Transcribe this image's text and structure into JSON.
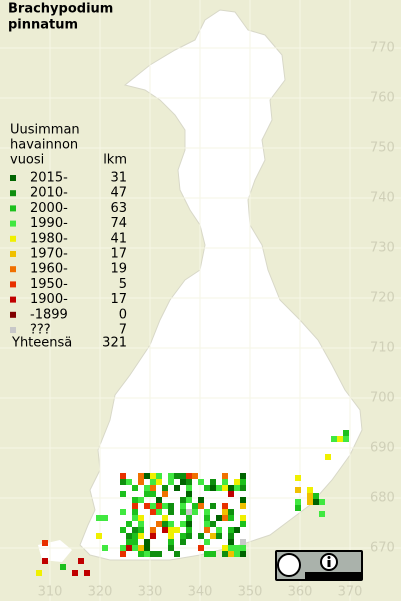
{
  "title": [
    "Brachypodium",
    "pinnatum"
  ],
  "legend": {
    "heading": [
      "Uusimman",
      "havainnon",
      "vuosi"
    ],
    "count_heading": "lkm",
    "rows": [
      {
        "label": "2015-",
        "count": 31,
        "color": "#006400"
      },
      {
        "label": "2010-",
        "count": 47,
        "color": "#0f8f0f"
      },
      {
        "label": "2000-",
        "count": 63,
        "color": "#1cc01c"
      },
      {
        "label": "1990-",
        "count": 74,
        "color": "#40e840"
      },
      {
        "label": "1980-",
        "count": 41,
        "color": "#f0f000"
      },
      {
        "label": "1970-",
        "count": 17,
        "color": "#f0c000"
      },
      {
        "label": "1960-",
        "count": 19,
        "color": "#f07000"
      },
      {
        "label": "1950-",
        "count": 5,
        "color": "#e83000"
      },
      {
        "label": "1900-",
        "count": 17,
        "color": "#c00000"
      },
      {
        "label": "-1899",
        "count": 0,
        "color": "#800000"
      },
      {
        "label": "???",
        "count": 7,
        "color": "#c8c8c8"
      }
    ],
    "total": {
      "label": "Yhteensä",
      "count": 321
    }
  },
  "grid": {
    "x_labels": [
      "310",
      "320",
      "330",
      "340",
      "350",
      "360",
      "370"
    ],
    "y_labels": [
      "770",
      "760",
      "750",
      "740",
      "730",
      "720",
      "710",
      "700",
      "690",
      "680",
      "670"
    ]
  }
}
